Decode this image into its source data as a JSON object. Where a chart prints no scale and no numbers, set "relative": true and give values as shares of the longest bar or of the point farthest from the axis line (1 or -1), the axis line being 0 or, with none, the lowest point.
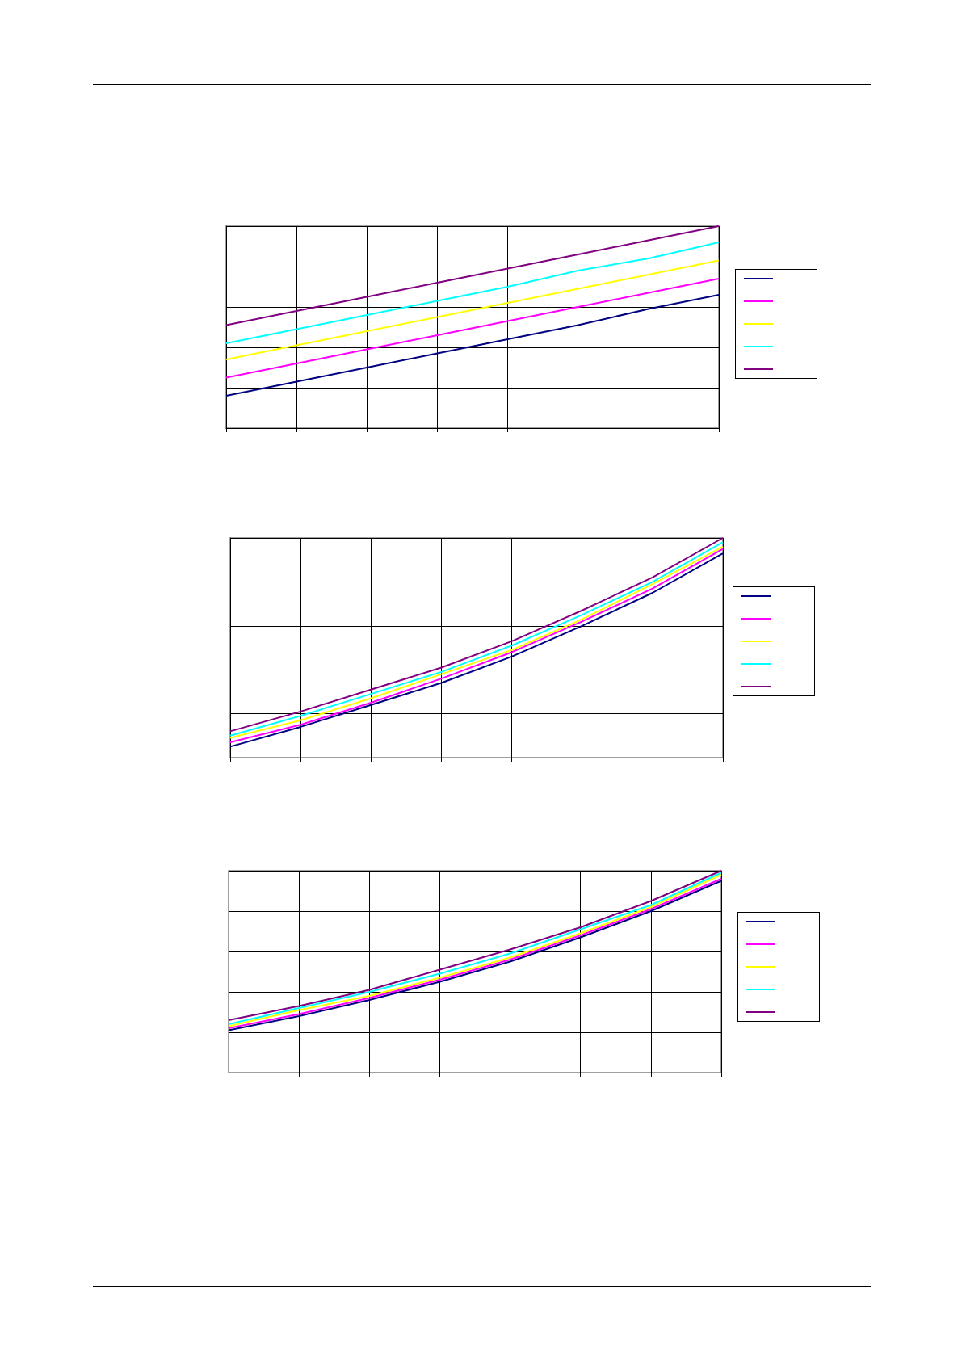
{
  "chart_data": [
    {
      "type": "line",
      "relative": true,
      "grid": true,
      "marker": "none",
      "line_style": "solid",
      "categories": [
        null,
        null,
        null,
        null,
        null,
        null,
        null,
        null
      ],
      "series": [
        {
          "color": "#000080",
          "values": [
            0.16,
            0.23,
            0.3,
            0.37,
            0.44,
            0.51,
            0.59,
            0.66
          ]
        },
        {
          "color": "#ff00ff",
          "values": [
            0.25,
            0.32,
            0.39,
            0.46,
            0.53,
            0.6,
            0.67,
            0.74
          ]
        },
        {
          "color": "#ffff00",
          "values": [
            0.34,
            0.41,
            0.48,
            0.55,
            0.62,
            0.69,
            0.76,
            0.83
          ]
        },
        {
          "color": "#00ffff",
          "values": [
            0.42,
            0.49,
            0.56,
            0.63,
            0.7,
            0.78,
            0.84,
            0.92
          ]
        },
        {
          "color": "#800080",
          "values": [
            0.51,
            0.58,
            0.65,
            0.72,
            0.79,
            0.86,
            0.93,
            1.0
          ]
        }
      ]
    },
    {
      "type": "line",
      "relative": true,
      "grid": true,
      "marker": "none",
      "line_style": "solid",
      "categories": [
        null,
        null,
        null,
        null,
        null,
        null,
        null,
        null
      ],
      "series": [
        {
          "color": "#000080",
          "values": [
            0.05,
            0.14,
            0.24,
            0.34,
            0.46,
            0.6,
            0.75,
            0.93
          ]
        },
        {
          "color": "#ff00ff",
          "values": [
            0.07,
            0.15,
            0.25,
            0.36,
            0.48,
            0.62,
            0.77,
            0.95
          ]
        },
        {
          "color": "#ffff00",
          "values": [
            0.09,
            0.17,
            0.27,
            0.38,
            0.49,
            0.63,
            0.79,
            0.96
          ]
        },
        {
          "color": "#00ffff",
          "values": [
            0.1,
            0.19,
            0.29,
            0.39,
            0.51,
            0.65,
            0.8,
            0.98
          ]
        },
        {
          "color": "#800080",
          "values": [
            0.12,
            0.21,
            0.31,
            0.41,
            0.53,
            0.67,
            0.82,
            1.0
          ]
        }
      ]
    },
    {
      "type": "line",
      "relative": true,
      "grid": true,
      "marker": "none",
      "line_style": "solid",
      "categories": [
        null,
        null,
        null,
        null,
        null,
        null,
        null,
        null
      ],
      "series": [
        {
          "color": "#000080",
          "values": [
            0.21,
            0.28,
            0.36,
            0.45,
            0.55,
            0.67,
            0.8,
            0.95
          ]
        },
        {
          "color": "#ff00ff",
          "values": [
            0.22,
            0.29,
            0.37,
            0.46,
            0.56,
            0.68,
            0.81,
            0.96
          ]
        },
        {
          "color": "#ffff00",
          "values": [
            0.23,
            0.31,
            0.38,
            0.47,
            0.57,
            0.69,
            0.82,
            0.98
          ]
        },
        {
          "color": "#00ffff",
          "values": [
            0.24,
            0.32,
            0.4,
            0.49,
            0.59,
            0.71,
            0.83,
            0.99
          ]
        },
        {
          "color": "#800080",
          "values": [
            0.26,
            0.33,
            0.41,
            0.51,
            0.61,
            0.72,
            0.85,
            1.0
          ]
        }
      ]
    }
  ]
}
